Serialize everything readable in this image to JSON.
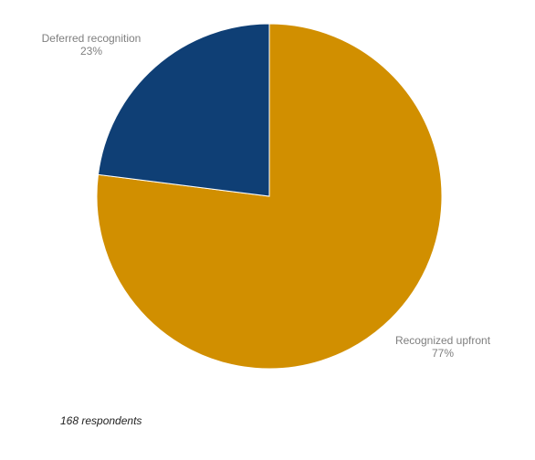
{
  "chart_data": {
    "type": "pie",
    "categories": [
      "Recognized upfront",
      "Deferred recognition"
    ],
    "values": [
      77,
      23
    ],
    "value_labels": [
      "77%",
      "23%"
    ],
    "colors": [
      "#d18f00",
      "#0f3f75"
    ],
    "note": "168 respondents"
  }
}
